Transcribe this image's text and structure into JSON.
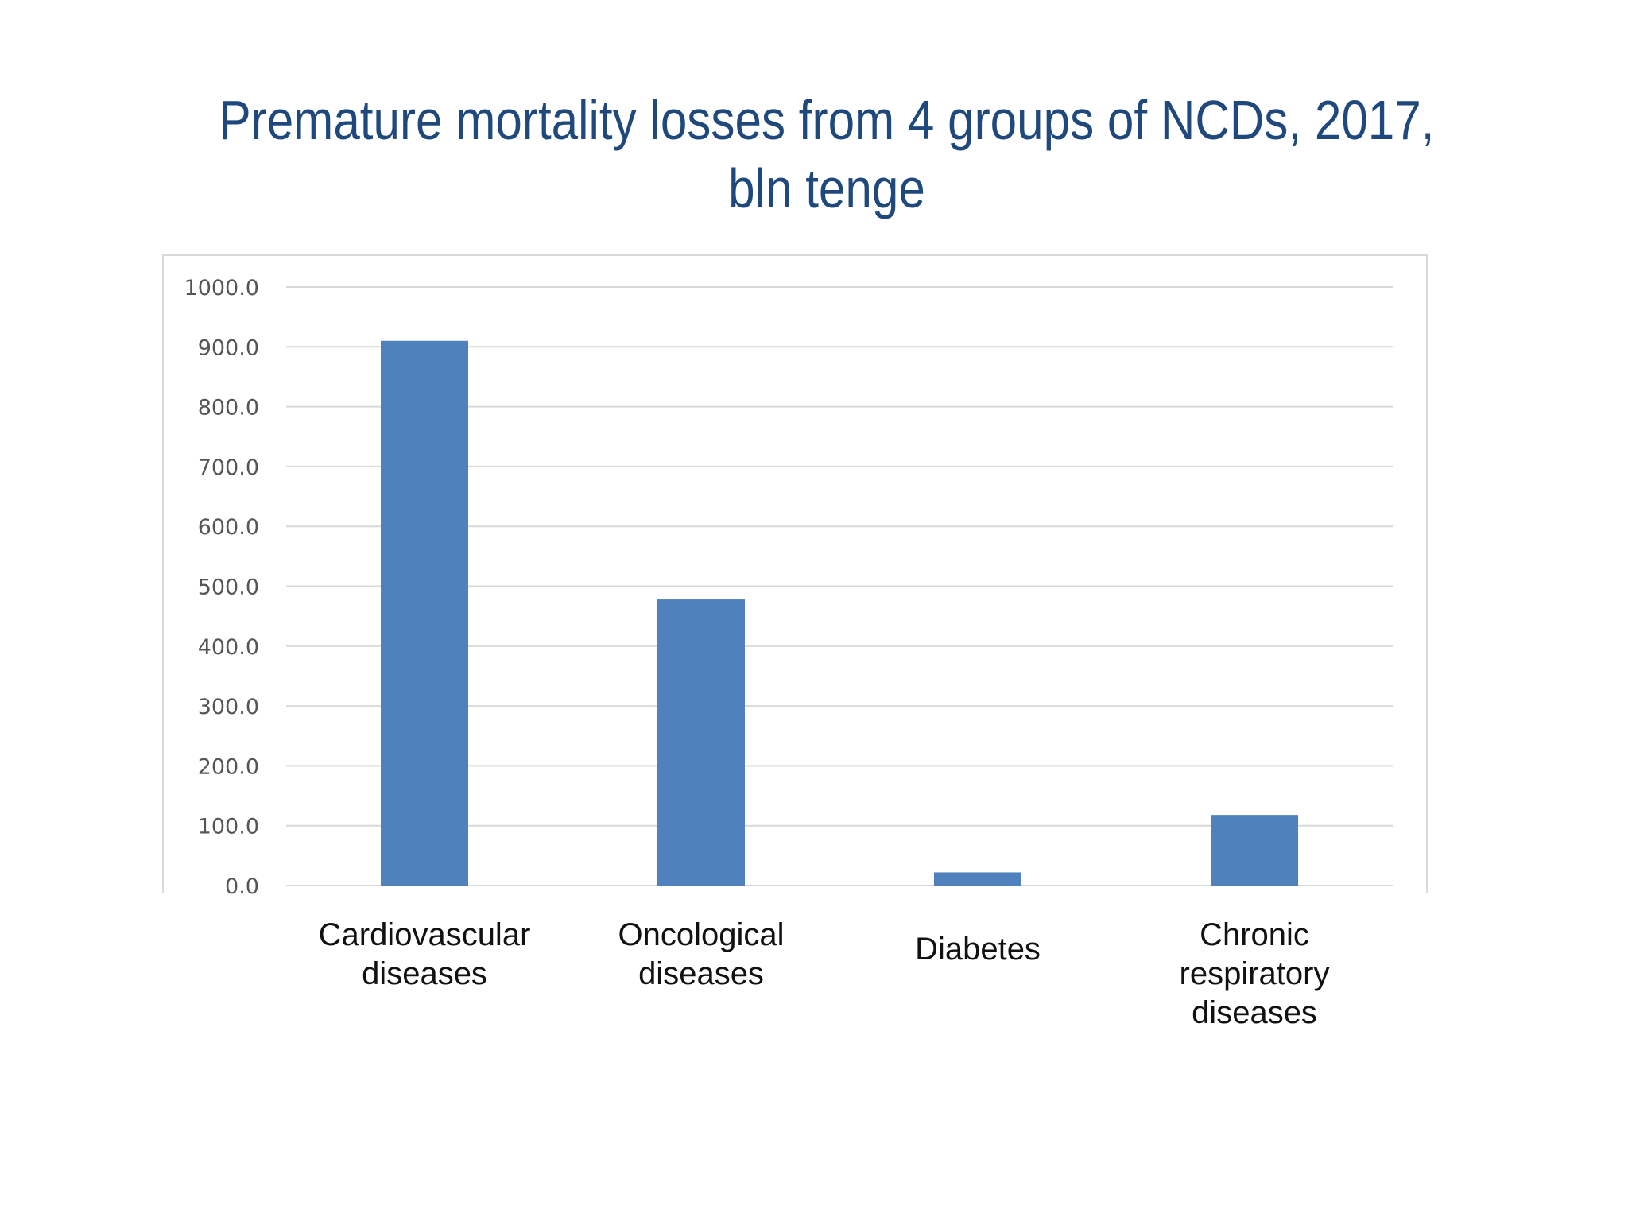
{
  "chart_data": {
    "type": "bar",
    "title_lines": [
      "Premature mortality losses from 4 groups of NCDs, 2017,",
      "bln tenge"
    ],
    "categories": [
      [
        "Cardiovascular",
        "diseases"
      ],
      [
        "Oncological",
        "diseases"
      ],
      [
        "Diabetes"
      ],
      [
        "Chronic",
        "respiratory",
        "diseases"
      ]
    ],
    "values": [
      910,
      478,
      22,
      118
    ],
    "ylim": [
      0,
      1000
    ],
    "yticks": [
      "0.0",
      "100.0",
      "200.0",
      "300.0",
      "400.0",
      "500.0",
      "600.0",
      "700.0",
      "800.0",
      "900.0",
      "1000.0"
    ],
    "grid": true,
    "legend": "none",
    "colors": {
      "bar": "#4f81bd",
      "title": "#1f497d",
      "grid": "#d9d9d9",
      "frame": "#d9d9d9"
    }
  }
}
